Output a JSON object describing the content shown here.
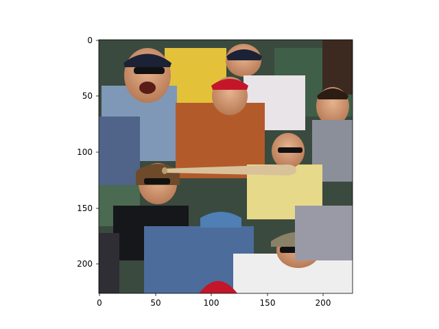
{
  "figure": {
    "image_content": "baseball bat flying into the stands toward startled fans wearing Twins caps",
    "image_extent": {
      "x": [
        0,
        227
      ],
      "y": [
        0,
        227
      ]
    },
    "x_ticks": [
      "0",
      "50",
      "100",
      "150",
      "200"
    ],
    "y_ticks": [
      "0",
      "50",
      "100",
      "150",
      "200"
    ]
  },
  "colors": {
    "axis": "#000000",
    "stadium_green": "#3f5f48",
    "bat": "#d9c29a",
    "twins_navy": "#1b2236",
    "twins_red": "#c4162a"
  }
}
